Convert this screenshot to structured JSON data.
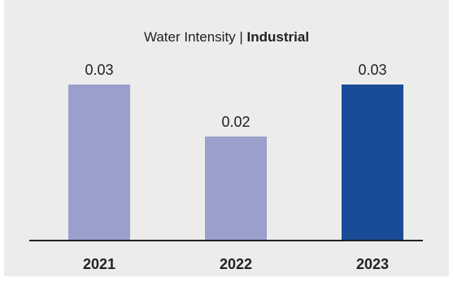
{
  "chart_data": {
    "type": "bar",
    "title_prefix": "Water Intensity | ",
    "title_bold": "Industrial",
    "categories": [
      "2021",
      "2022",
      "2023"
    ],
    "values": [
      0.03,
      0.02,
      0.03
    ],
    "value_labels": [
      "0.03",
      "0.02",
      "0.03"
    ],
    "ylim": [
      0,
      0.04
    ],
    "grid": false,
    "legend": "none",
    "colors": {
      "background": "#ececec",
      "bar_default": "#9aa0cc",
      "bar_highlight": "#1a4b97",
      "axis": "#222222",
      "text": "#222222"
    },
    "highlight_index": 2
  }
}
